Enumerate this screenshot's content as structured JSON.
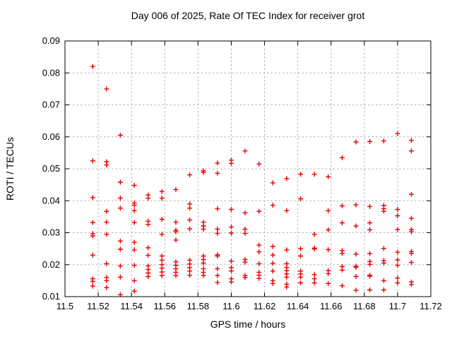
{
  "chart_data": {
    "type": "scatter",
    "title": "Day 006 of 2025, Rate Of TEC Index for receiver grot",
    "xlabel": "GPS time / hours",
    "ylabel": "ROTI / TECUs",
    "xlim": [
      11.5,
      11.72
    ],
    "ylim": [
      0.01,
      0.09
    ],
    "x_ticks": [
      "11.5",
      "11.52",
      "11.54",
      "11.56",
      "11.58",
      "11.6",
      "11.62",
      "11.64",
      "11.66",
      "11.68",
      "11.7",
      "11.72"
    ],
    "y_ticks": [
      "0.01",
      "0.02",
      "0.03",
      "0.04",
      "0.05",
      "0.06",
      "0.07",
      "0.08",
      "0.09"
    ],
    "grid": true,
    "legend_position": "none",
    "marker": "plus",
    "marker_color": "#ee0000",
    "grid_color": "#b0b0b0",
    "axis_color": "#000000",
    "series": [
      {
        "name": "ROTI",
        "points": [
          [
            11.5167,
            0.082
          ],
          [
            11.5167,
            0.0525
          ],
          [
            11.5167,
            0.041
          ],
          [
            11.5167,
            0.0332
          ],
          [
            11.5167,
            0.0297
          ],
          [
            11.5167,
            0.029
          ],
          [
            11.5167,
            0.023
          ],
          [
            11.5167,
            0.0156
          ],
          [
            11.5167,
            0.0148
          ],
          [
            11.5167,
            0.0133
          ],
          [
            11.525,
            0.075
          ],
          [
            11.525,
            0.0522
          ],
          [
            11.525,
            0.0512
          ],
          [
            11.525,
            0.0367
          ],
          [
            11.525,
            0.0333
          ],
          [
            11.525,
            0.0295
          ],
          [
            11.525,
            0.0203
          ],
          [
            11.525,
            0.016
          ],
          [
            11.525,
            0.015
          ],
          [
            11.525,
            0.0128
          ],
          [
            11.5333,
            0.0605
          ],
          [
            11.5333,
            0.0458
          ],
          [
            11.5333,
            0.0408
          ],
          [
            11.5333,
            0.0377
          ],
          [
            11.5333,
            0.0274
          ],
          [
            11.5333,
            0.0248
          ],
          [
            11.5333,
            0.0196
          ],
          [
            11.5333,
            0.0161
          ],
          [
            11.5333,
            0.0106
          ],
          [
            11.5417,
            0.0448
          ],
          [
            11.5417,
            0.0393
          ],
          [
            11.5417,
            0.0386
          ],
          [
            11.5417,
            0.0369
          ],
          [
            11.5417,
            0.0332
          ],
          [
            11.5417,
            0.027
          ],
          [
            11.5417,
            0.0246
          ],
          [
            11.5417,
            0.0198
          ],
          [
            11.5417,
            0.015
          ],
          [
            11.5417,
            0.0117
          ],
          [
            11.55,
            0.0418
          ],
          [
            11.55,
            0.0408
          ],
          [
            11.55,
            0.0336
          ],
          [
            11.55,
            0.0326
          ],
          [
            11.55,
            0.0253
          ],
          [
            11.55,
            0.0229
          ],
          [
            11.55,
            0.0196
          ],
          [
            11.55,
            0.0185
          ],
          [
            11.55,
            0.0174
          ],
          [
            11.55,
            0.0163
          ],
          [
            11.5583,
            0.0429
          ],
          [
            11.5583,
            0.0408
          ],
          [
            11.5583,
            0.0342
          ],
          [
            11.5583,
            0.0295
          ],
          [
            11.5583,
            0.0227
          ],
          [
            11.5583,
            0.0214
          ],
          [
            11.5583,
            0.02
          ],
          [
            11.5583,
            0.0189
          ],
          [
            11.5583,
            0.0177
          ],
          [
            11.5583,
            0.0166
          ],
          [
            11.5667,
            0.0435
          ],
          [
            11.5667,
            0.0333
          ],
          [
            11.5667,
            0.0308
          ],
          [
            11.5667,
            0.0303
          ],
          [
            11.5667,
            0.0277
          ],
          [
            11.5667,
            0.0209
          ],
          [
            11.5667,
            0.0198
          ],
          [
            11.5667,
            0.0187
          ],
          [
            11.5667,
            0.0176
          ],
          [
            11.5667,
            0.0166
          ],
          [
            11.575,
            0.0481
          ],
          [
            11.575,
            0.039
          ],
          [
            11.575,
            0.0377
          ],
          [
            11.575,
            0.034
          ],
          [
            11.575,
            0.0312
          ],
          [
            11.575,
            0.0214
          ],
          [
            11.575,
            0.0202
          ],
          [
            11.575,
            0.0191
          ],
          [
            11.575,
            0.018
          ],
          [
            11.575,
            0.0167
          ],
          [
            11.5833,
            0.0494
          ],
          [
            11.5833,
            0.0489
          ],
          [
            11.5833,
            0.0333
          ],
          [
            11.5833,
            0.0321
          ],
          [
            11.5833,
            0.0311
          ],
          [
            11.5833,
            0.0227
          ],
          [
            11.5833,
            0.0216
          ],
          [
            11.5833,
            0.0205
          ],
          [
            11.5833,
            0.0187
          ],
          [
            11.5833,
            0.0176
          ],
          [
            11.5833,
            0.0166
          ],
          [
            11.5917,
            0.0518
          ],
          [
            11.5917,
            0.0486
          ],
          [
            11.5917,
            0.0375
          ],
          [
            11.5917,
            0.0311
          ],
          [
            11.5917,
            0.0298
          ],
          [
            11.5917,
            0.0231
          ],
          [
            11.5917,
            0.0227
          ],
          [
            11.5917,
            0.0187
          ],
          [
            11.5917,
            0.0166
          ],
          [
            11.5917,
            0.0144
          ],
          [
            11.6,
            0.0527
          ],
          [
            11.6,
            0.0517
          ],
          [
            11.6,
            0.0373
          ],
          [
            11.6,
            0.0318
          ],
          [
            11.6,
            0.0299
          ],
          [
            11.6,
            0.0211
          ],
          [
            11.6,
            0.0191
          ],
          [
            11.6,
            0.018
          ],
          [
            11.6,
            0.0156
          ],
          [
            11.6,
            0.0146
          ],
          [
            11.6083,
            0.0556
          ],
          [
            11.6083,
            0.0362
          ],
          [
            11.6083,
            0.0311
          ],
          [
            11.6083,
            0.0298
          ],
          [
            11.6083,
            0.0216
          ],
          [
            11.6083,
            0.0208
          ],
          [
            11.6083,
            0.0166
          ],
          [
            11.6083,
            0.016
          ],
          [
            11.6167,
            0.0515
          ],
          [
            11.6167,
            0.0367
          ],
          [
            11.6167,
            0.0261
          ],
          [
            11.6167,
            0.024
          ],
          [
            11.6167,
            0.0203
          ],
          [
            11.6167,
            0.0176
          ],
          [
            11.6167,
            0.0167
          ],
          [
            11.6167,
            0.0157
          ],
          [
            11.625,
            0.0456
          ],
          [
            11.625,
            0.0386
          ],
          [
            11.625,
            0.0257
          ],
          [
            11.625,
            0.023
          ],
          [
            11.625,
            0.0204
          ],
          [
            11.625,
            0.018
          ],
          [
            11.625,
            0.015
          ],
          [
            11.625,
            0.0141
          ],
          [
            11.6333,
            0.0469
          ],
          [
            11.6333,
            0.0369
          ],
          [
            11.6333,
            0.0246
          ],
          [
            11.6333,
            0.0203
          ],
          [
            11.6333,
            0.0191
          ],
          [
            11.6333,
            0.0181
          ],
          [
            11.6333,
            0.0171
          ],
          [
            11.6333,
            0.0161
          ],
          [
            11.6333,
            0.0139
          ],
          [
            11.6333,
            0.013
          ],
          [
            11.6417,
            0.0483
          ],
          [
            11.6417,
            0.0406
          ],
          [
            11.6417,
            0.025
          ],
          [
            11.6417,
            0.0227
          ],
          [
            11.6417,
            0.018
          ],
          [
            11.6417,
            0.0171
          ],
          [
            11.6417,
            0.0161
          ],
          [
            11.6417,
            0.0143
          ],
          [
            11.65,
            0.0483
          ],
          [
            11.65,
            0.0295
          ],
          [
            11.65,
            0.0252
          ],
          [
            11.65,
            0.0249
          ],
          [
            11.65,
            0.0169
          ],
          [
            11.65,
            0.0156
          ],
          [
            11.65,
            0.0143
          ],
          [
            11.6583,
            0.0475
          ],
          [
            11.6583,
            0.0369
          ],
          [
            11.6583,
            0.0309
          ],
          [
            11.6583,
            0.0247
          ],
          [
            11.6583,
            0.0181
          ],
          [
            11.6583,
            0.0172
          ],
          [
            11.6583,
            0.0141
          ],
          [
            11.6667,
            0.0535
          ],
          [
            11.6667,
            0.0384
          ],
          [
            11.6667,
            0.0331
          ],
          [
            11.6667,
            0.0244
          ],
          [
            11.6667,
            0.0235
          ],
          [
            11.6667,
            0.0194
          ],
          [
            11.6667,
            0.0183
          ],
          [
            11.6667,
            0.0134
          ],
          [
            11.675,
            0.0584
          ],
          [
            11.675,
            0.0387
          ],
          [
            11.675,
            0.0321
          ],
          [
            11.675,
            0.0233
          ],
          [
            11.675,
            0.0195
          ],
          [
            11.675,
            0.0192
          ],
          [
            11.675,
            0.0163
          ],
          [
            11.675,
            0.012
          ],
          [
            11.6833,
            0.0585
          ],
          [
            11.6833,
            0.0382
          ],
          [
            11.6833,
            0.0331
          ],
          [
            11.6833,
            0.0309
          ],
          [
            11.6833,
            0.0235
          ],
          [
            11.6833,
            0.021
          ],
          [
            11.6833,
            0.0201
          ],
          [
            11.6833,
            0.0167
          ],
          [
            11.6833,
            0.0164
          ],
          [
            11.6833,
            0.0121
          ],
          [
            11.6917,
            0.0587
          ],
          [
            11.6917,
            0.0385
          ],
          [
            11.6917,
            0.0375
          ],
          [
            11.6917,
            0.0367
          ],
          [
            11.6917,
            0.0251
          ],
          [
            11.6917,
            0.0213
          ],
          [
            11.6917,
            0.0205
          ],
          [
            11.6917,
            0.015
          ],
          [
            11.6917,
            0.0121
          ],
          [
            11.7,
            0.061
          ],
          [
            11.7,
            0.0373
          ],
          [
            11.7,
            0.0353
          ],
          [
            11.7,
            0.031
          ],
          [
            11.7,
            0.0239
          ],
          [
            11.7,
            0.0215
          ],
          [
            11.7,
            0.0198
          ],
          [
            11.7,
            0.0158
          ],
          [
            11.7,
            0.0143
          ],
          [
            11.7083,
            0.0589
          ],
          [
            11.7083,
            0.0556
          ],
          [
            11.7083,
            0.042
          ],
          [
            11.7083,
            0.0345
          ],
          [
            11.7083,
            0.031
          ],
          [
            11.7083,
            0.0303
          ],
          [
            11.7083,
            0.0241
          ],
          [
            11.7083,
            0.0235
          ],
          [
            11.7083,
            0.0207
          ],
          [
            11.7083,
            0.0146
          ],
          [
            11.7083,
            0.0138
          ]
        ]
      }
    ]
  }
}
